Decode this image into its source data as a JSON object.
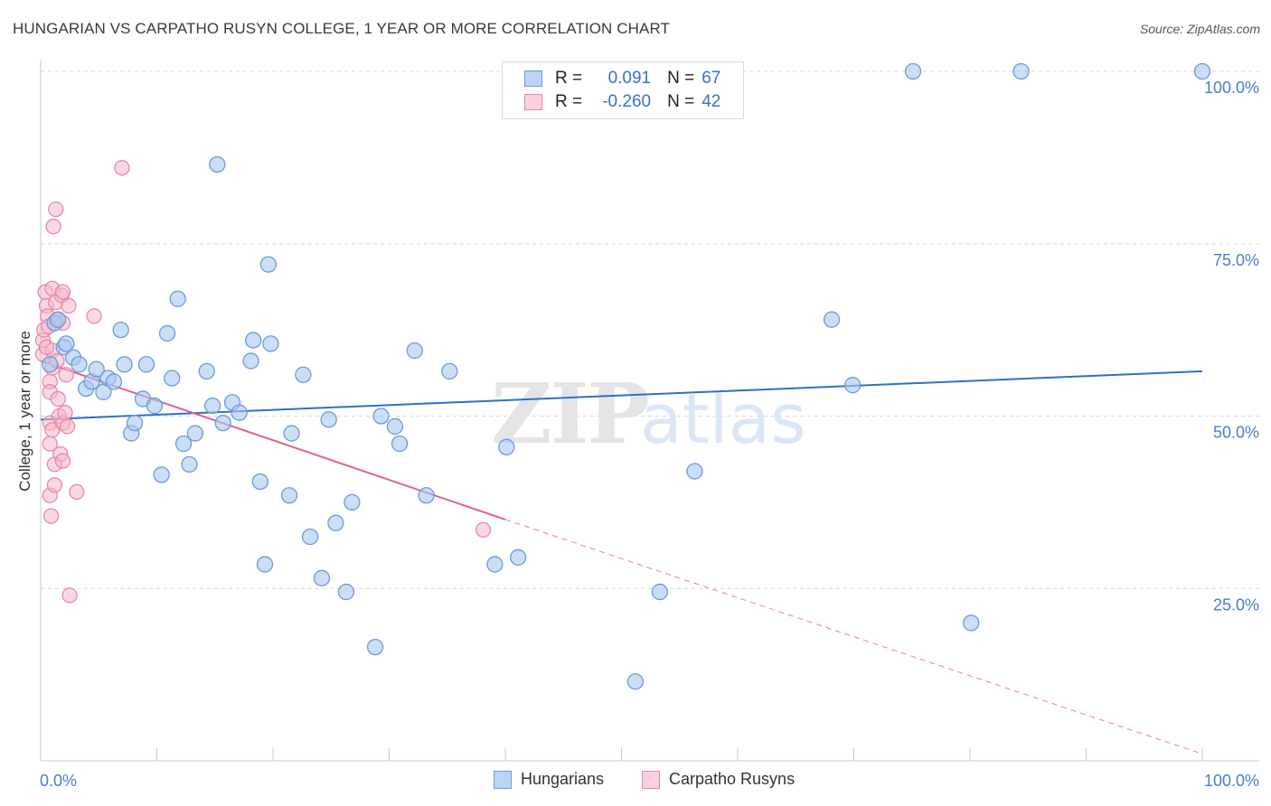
{
  "title": "HUNGARIAN VS CARPATHO RUSYN COLLEGE, 1 YEAR OR MORE CORRELATION CHART",
  "source": "Source: ZipAtlas.com",
  "colors": {
    "blue_fill": "#aac8ef",
    "blue_stroke": "#6b9ad9",
    "blue_line": "#2f6fc9",
    "pink_fill": "#f6b8cb",
    "pink_stroke": "#e58aa8",
    "pink_line": "#e0608f",
    "grid": "#d8d8d8",
    "tick_text": "#4a7cc9"
  },
  "legend": {
    "rows": [
      {
        "r_label": "R =",
        "r_value": "0.091",
        "n_label": "N =",
        "n_value": "67"
      },
      {
        "r_label": "R =",
        "r_value": "-0.260",
        "n_label": "N =",
        "n_value": "42"
      }
    ]
  },
  "bottom_legend": {
    "blue": "Hungarians",
    "pink": "Carpatho Rusyns"
  },
  "watermark": {
    "zip": "ZIP",
    "atlas": "atlas"
  },
  "chart_data": {
    "type": "scatter",
    "title": "HUNGARIAN VS CARPATHO RUSYN COLLEGE, 1 YEAR OR MORE CORRELATION CHART",
    "xlabel": "",
    "ylabel": "College, 1 year or more",
    "xlim": [
      0,
      100
    ],
    "ylim": [
      0,
      100
    ],
    "x_tick_labels": {
      "left": "0.0%",
      "right": "100.0%"
    },
    "y_ticks": [
      {
        "value": 100,
        "label": "100.0%"
      },
      {
        "value": 75,
        "label": "75.0%"
      },
      {
        "value": 50,
        "label": "50.0%"
      },
      {
        "value": 25,
        "label": "25.0%"
      }
    ],
    "series": [
      {
        "name": "Hungarians",
        "R": 0.091,
        "N": 67,
        "trend": {
          "x": [
            0,
            100
          ],
          "y": [
            49.5,
            56.5
          ]
        },
        "points": [
          [
            0.8,
            57.5
          ],
          [
            1.2,
            63.5
          ],
          [
            1.5,
            64
          ],
          [
            2,
            60
          ],
          [
            2.2,
            60.5
          ],
          [
            2.8,
            58.5
          ],
          [
            3.3,
            57.5
          ],
          [
            3.9,
            54
          ],
          [
            4.4,
            55
          ],
          [
            4.8,
            56.8
          ],
          [
            5.4,
            53.5
          ],
          [
            5.8,
            55.5
          ],
          [
            6.3,
            55
          ],
          [
            6.9,
            62.5
          ],
          [
            7.2,
            57.5
          ],
          [
            7.8,
            47.5
          ],
          [
            8.1,
            49
          ],
          [
            8.8,
            52.5
          ],
          [
            9.1,
            57.5
          ],
          [
            9.8,
            51.5
          ],
          [
            10.4,
            41.5
          ],
          [
            10.9,
            62
          ],
          [
            11.3,
            55.5
          ],
          [
            11.8,
            67
          ],
          [
            12.3,
            46
          ],
          [
            12.8,
            43
          ],
          [
            13.3,
            47.5
          ],
          [
            14.3,
            56.5
          ],
          [
            14.8,
            51.5
          ],
          [
            15.2,
            86.5
          ],
          [
            15.7,
            49
          ],
          [
            16.5,
            52
          ],
          [
            17.1,
            50.5
          ],
          [
            18.1,
            58
          ],
          [
            18.3,
            61
          ],
          [
            18.9,
            40.5
          ],
          [
            19.3,
            28.5
          ],
          [
            19.6,
            72
          ],
          [
            19.8,
            60.5
          ],
          [
            21.4,
            38.5
          ],
          [
            21.6,
            47.5
          ],
          [
            22.6,
            56
          ],
          [
            23.2,
            32.5
          ],
          [
            24.2,
            26.5
          ],
          [
            24.8,
            49.5
          ],
          [
            25.4,
            34.5
          ],
          [
            26.3,
            24.5
          ],
          [
            26.8,
            37.5
          ],
          [
            28.8,
            16.5
          ],
          [
            29.3,
            50
          ],
          [
            30.5,
            48.5
          ],
          [
            30.9,
            46
          ],
          [
            32.2,
            59.5
          ],
          [
            33.2,
            38.5
          ],
          [
            35.2,
            56.5
          ],
          [
            39.1,
            28.5
          ],
          [
            40.1,
            45.5
          ],
          [
            41.1,
            29.5
          ],
          [
            53.3,
            24.5
          ],
          [
            56.3,
            42
          ],
          [
            68.1,
            64
          ],
          [
            69.9,
            54.5
          ],
          [
            75.1,
            100
          ],
          [
            80.1,
            20
          ],
          [
            84.4,
            100
          ],
          [
            100,
            100
          ],
          [
            51.2,
            11.5
          ]
        ]
      },
      {
        "name": "Carpatho Rusyns",
        "R": -0.26,
        "N": 42,
        "trend": {
          "x": [
            0,
            40
          ],
          "y": [
            58,
            35
          ]
        },
        "trend_dashed": {
          "x": [
            40,
            100
          ],
          "y": [
            35,
            1
          ]
        },
        "points": [
          [
            0.2,
            59
          ],
          [
            0.2,
            61
          ],
          [
            0.3,
            62.5
          ],
          [
            0.4,
            68
          ],
          [
            0.5,
            66
          ],
          [
            0.6,
            64.5
          ],
          [
            0.7,
            63
          ],
          [
            0.8,
            55
          ],
          [
            0.8,
            53.5
          ],
          [
            0.8,
            49
          ],
          [
            0.8,
            46
          ],
          [
            0.8,
            38.5
          ],
          [
            0.9,
            35.5
          ],
          [
            1,
            68.5
          ],
          [
            1,
            59.5
          ],
          [
            1,
            57
          ],
          [
            1,
            48
          ],
          [
            1.1,
            77.5
          ],
          [
            1.2,
            40
          ],
          [
            1.2,
            43
          ],
          [
            1.3,
            80
          ],
          [
            1.3,
            66.5
          ],
          [
            1.4,
            64
          ],
          [
            1.4,
            58
          ],
          [
            1.5,
            52.5
          ],
          [
            1.6,
            50
          ],
          [
            1.7,
            44.5
          ],
          [
            1.8,
            67.5
          ],
          [
            1.9,
            68
          ],
          [
            1.9,
            63.5
          ],
          [
            1.9,
            43.5
          ],
          [
            1.9,
            49
          ],
          [
            2.1,
            50.5
          ],
          [
            2.2,
            56
          ],
          [
            2.3,
            48.5
          ],
          [
            2.4,
            66
          ],
          [
            2.5,
            24
          ],
          [
            3.1,
            39
          ],
          [
            4.6,
            64.5
          ],
          [
            7,
            86
          ],
          [
            38.1,
            33.5
          ],
          [
            0.5,
            60
          ]
        ]
      }
    ]
  }
}
